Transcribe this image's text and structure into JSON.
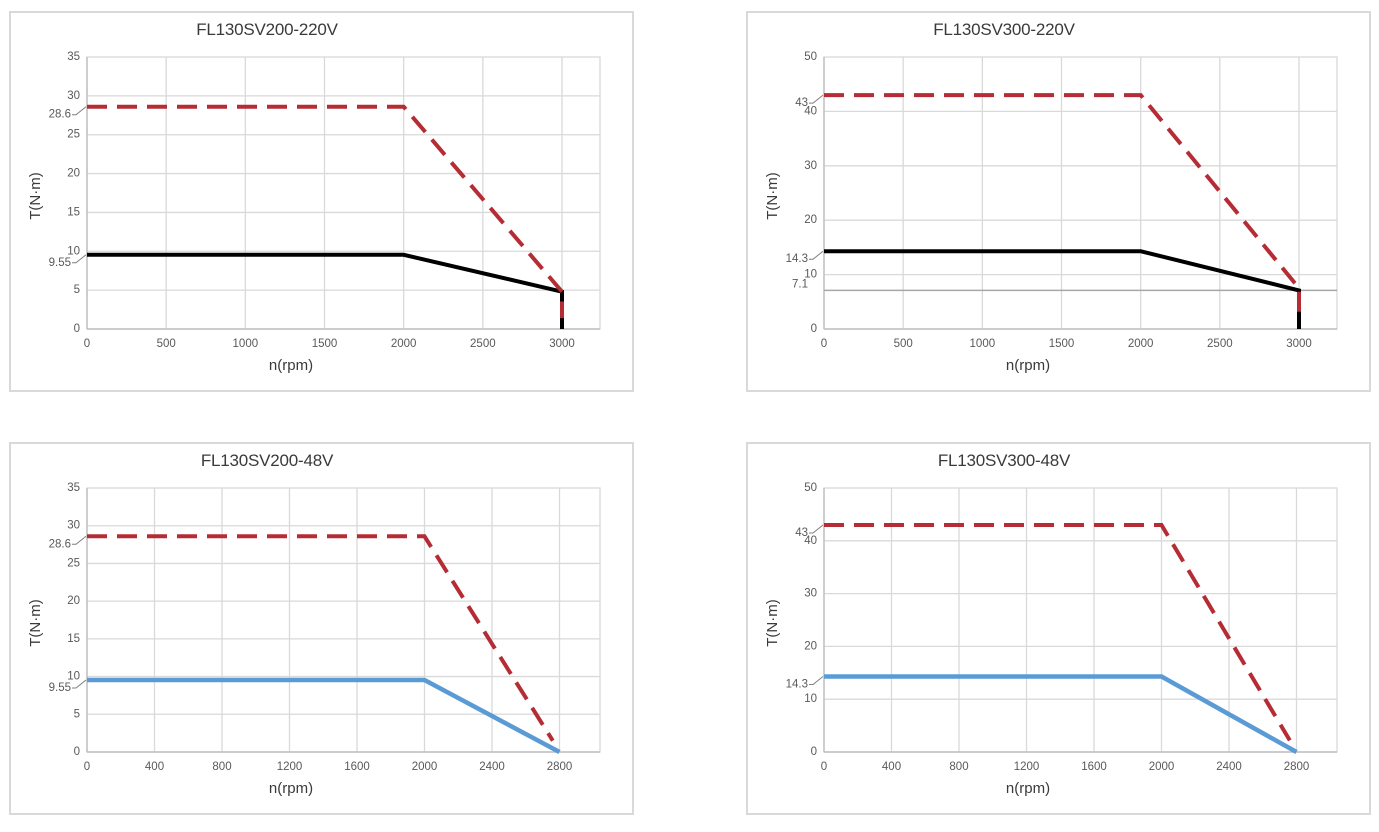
{
  "theme": {
    "background": "#ffffff",
    "panel_border": "#d9d9d9",
    "gridline": "#d9d9d9",
    "axis_line": "#bfbfbf",
    "tick_text": "#595959",
    "label_text": "#3a3a3a",
    "leader_line": "#7f7f7f",
    "peak_red": "#b62c35",
    "rated_black": "#000000",
    "rated_blue": "#5b9bd5",
    "reference_gray": "#a6a6a6"
  },
  "chart_data": [
    {
      "type": "line",
      "title": "FL130SV200-220V",
      "xlabel": "n(rpm)",
      "ylabel": "T(N·m)",
      "x_ticks": [
        0,
        500,
        1000,
        1500,
        2000,
        2500,
        3000
      ],
      "x_display_max": 3240,
      "y_ticks": [
        0,
        5,
        10,
        15,
        20,
        25,
        30,
        35
      ],
      "y_max": 35,
      "grid": true,
      "legend": "none",
      "annotations": [
        {
          "label": "28.6",
          "value": 28.6
        },
        {
          "label": "9.55",
          "value": 9.55
        }
      ],
      "series": [
        {
          "id": "rated-torque-curve",
          "style": "solid",
          "color": "#000000",
          "width": 4,
          "points": [
            [
              0,
              9.55
            ],
            [
              2000,
              9.55
            ],
            [
              3000,
              4.8
            ],
            [
              3000,
              0
            ]
          ]
        },
        {
          "id": "peak-torque-curve",
          "style": "dashed",
          "color": "#b62c35",
          "width": 4,
          "points": [
            [
              0,
              28.6
            ],
            [
              2000,
              28.6
            ],
            [
              3000,
              4.8
            ],
            [
              3000,
              1.4
            ]
          ]
        }
      ]
    },
    {
      "type": "line",
      "title": "FL130SV300-220V",
      "xlabel": "n(rpm)",
      "ylabel": "T(N·m)",
      "x_ticks": [
        0,
        500,
        1000,
        1500,
        2000,
        2500,
        3000
      ],
      "x_display_max": 3240,
      "y_ticks": [
        0,
        10,
        20,
        30,
        40,
        50
      ],
      "y_max": 50,
      "grid": true,
      "legend": "none",
      "reference_line": {
        "value": 7.1,
        "color": "#a6a6a6",
        "width": 1.5
      },
      "annotations": [
        {
          "label": "43",
          "value": 43
        },
        {
          "label": "14.3",
          "value": 14.3
        },
        {
          "label": "7.1",
          "value": 7.1,
          "above": true
        }
      ],
      "series": [
        {
          "id": "rated-torque-curve",
          "style": "solid",
          "color": "#000000",
          "width": 4,
          "points": [
            [
              0,
              14.3
            ],
            [
              2000,
              14.3
            ],
            [
              3000,
              7.1
            ],
            [
              3000,
              0
            ]
          ]
        },
        {
          "id": "peak-torque-curve",
          "style": "dashed",
          "color": "#b62c35",
          "width": 4,
          "points": [
            [
              0,
              43
            ],
            [
              2000,
              43
            ],
            [
              3000,
              7.5
            ],
            [
              3000,
              2
            ]
          ]
        }
      ]
    },
    {
      "type": "line",
      "title": "FL130SV200-48V",
      "xlabel": "n(rpm)",
      "ylabel": "T(N·m)",
      "x_ticks": [
        0,
        400,
        800,
        1200,
        1600,
        2000,
        2400,
        2800
      ],
      "x_display_max": 3040,
      "y_ticks": [
        0,
        5,
        10,
        15,
        20,
        25,
        30,
        35
      ],
      "y_max": 35,
      "grid": true,
      "legend": "none",
      "annotations": [
        {
          "label": "28.6",
          "value": 28.6
        },
        {
          "label": "9.55",
          "value": 9.55
        }
      ],
      "series": [
        {
          "id": "rated-torque-curve",
          "style": "solid",
          "color": "#5b9bd5",
          "width": 4.5,
          "points": [
            [
              0,
              9.55
            ],
            [
              2000,
              9.55
            ],
            [
              2800,
              0
            ]
          ]
        },
        {
          "id": "peak-torque-curve",
          "style": "dashed",
          "color": "#b62c35",
          "width": 4,
          "points": [
            [
              0,
              28.6
            ],
            [
              2000,
              28.6
            ],
            [
              2760,
              1.5
            ]
          ]
        }
      ]
    },
    {
      "type": "line",
      "title": "FL130SV300-48V",
      "xlabel": "n(rpm)",
      "ylabel": "T(N·m)",
      "x_ticks": [
        0,
        400,
        800,
        1200,
        1600,
        2000,
        2400,
        2800
      ],
      "x_display_max": 3040,
      "y_ticks": [
        0,
        10,
        20,
        30,
        40,
        50
      ],
      "y_max": 50,
      "grid": true,
      "legend": "none",
      "annotations": [
        {
          "label": "43",
          "value": 43
        },
        {
          "label": "14.3",
          "value": 14.3
        }
      ],
      "series": [
        {
          "id": "rated-torque-curve",
          "style": "solid",
          "color": "#5b9bd5",
          "width": 4.5,
          "points": [
            [
              0,
              14.3
            ],
            [
              2000,
              14.3
            ],
            [
              2800,
              0
            ]
          ]
        },
        {
          "id": "peak-torque-curve",
          "style": "dashed",
          "color": "#b62c35",
          "width": 4,
          "points": [
            [
              0,
              43
            ],
            [
              2000,
              43
            ],
            [
              2760,
              2.2
            ]
          ]
        }
      ]
    }
  ]
}
